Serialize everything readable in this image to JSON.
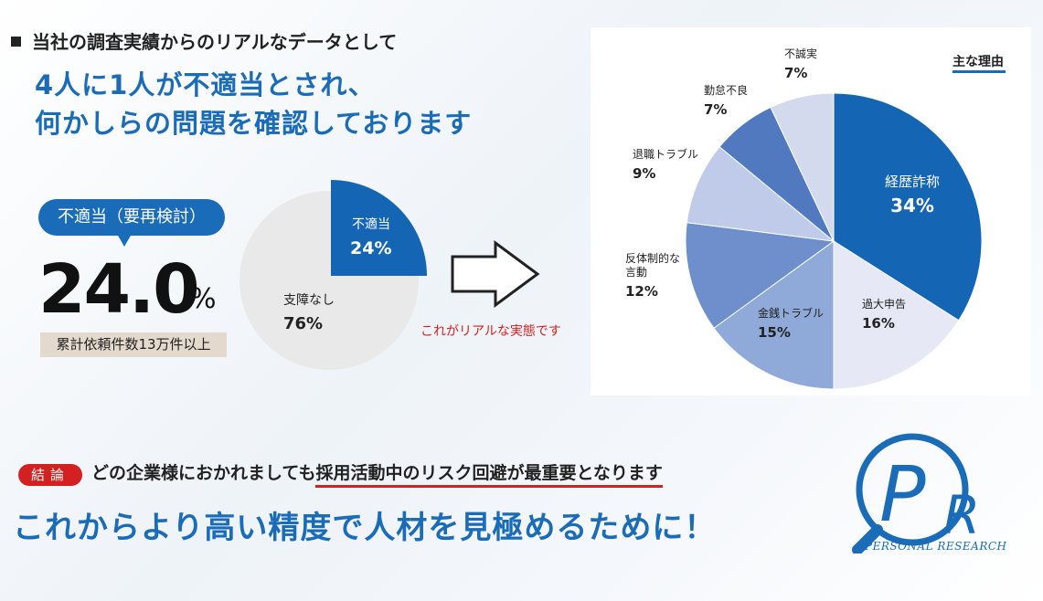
{
  "header": {
    "line": "当社の調査実績からのリアルなデータとして",
    "headline_1": "4人に1人が不適当とされ、",
    "headline_2": "何かしらの問題を確認しております"
  },
  "stat": {
    "bubble": "不適当（要再検討）",
    "value": "24.0",
    "unit": "%",
    "caption": "累計依頼件数13万件以上"
  },
  "reality_note": "これがリアルな実態です",
  "conclusion": {
    "badge": "結論",
    "prefix": "どの企業様におかれましても",
    "highlight": "採用活動中のリスク回避が最重要となります",
    "final": "これからより高い精度で人材を見極めるために！"
  },
  "logo": {
    "letters": "PR",
    "text": "PERSONAL RESEARCH"
  },
  "chart_data": [
    {
      "type": "pie",
      "slices": [
        {
          "label": "不適当",
          "value": 24,
          "color": "#1565b5"
        },
        {
          "label": "支障なし",
          "value": 76,
          "color": "#ececec"
        }
      ]
    },
    {
      "type": "pie",
      "legend_title": "主な理由",
      "slices": [
        {
          "label": "経歴詐称",
          "value": 34,
          "color": "#1565b5"
        },
        {
          "label": "過大申告",
          "value": 16,
          "color": "#e6e9f5"
        },
        {
          "label": "金銭トラブル",
          "value": 15,
          "color": "#8fa9d8"
        },
        {
          "label": "反体制的な言動",
          "value": 12,
          "color": "#6e8fcc"
        },
        {
          "label": "退職トラブル",
          "value": 9,
          "color": "#bfcbe8"
        },
        {
          "label": "勤怠不良",
          "value": 7,
          "color": "#5079bf"
        },
        {
          "label": "不誠実",
          "value": 7,
          "color": "#d4daee"
        }
      ]
    }
  ]
}
